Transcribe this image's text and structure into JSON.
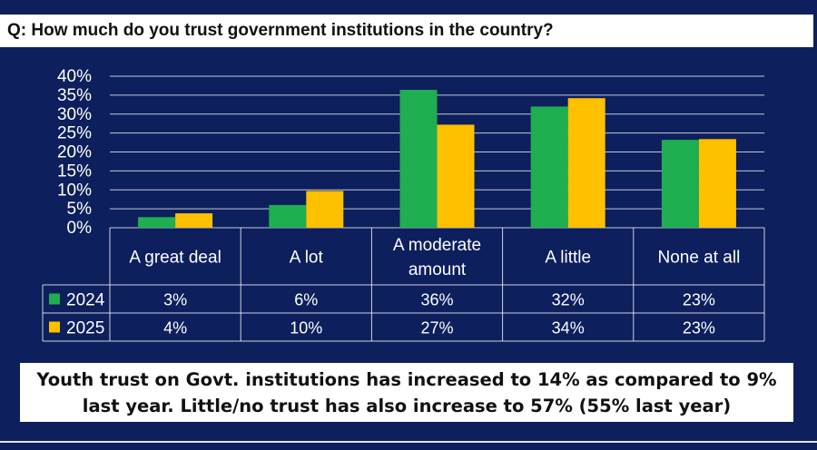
{
  "question": "Q: How much do you trust government institutions in the country?",
  "summary": "Youth trust on Govt. institutions has increased to 14% as compared to 9% last year. Little/no trust has also increase to 57% (55% last year)",
  "colors": {
    "background": "#0d1f5c",
    "series_2024": "#1fae50",
    "series_2025": "#ffc000",
    "grid": "#ffffff"
  },
  "chart_data": {
    "type": "bar",
    "categories": [
      "A great deal",
      "A lot",
      "A moderate amount",
      "A little",
      "None at all"
    ],
    "category_lines": [
      [
        "A great deal"
      ],
      [
        "A lot"
      ],
      [
        "A moderate",
        "amount"
      ],
      [
        "A little"
      ],
      [
        "None at all"
      ]
    ],
    "series": [
      {
        "name": "2024",
        "values": [
          2.8,
          6,
          36.4,
          32,
          23.2
        ],
        "labels": [
          "3%",
          "6%",
          "36%",
          "32%",
          "23%"
        ]
      },
      {
        "name": "2025",
        "values": [
          3.8,
          9.7,
          27.2,
          34.2,
          23.4
        ],
        "labels": [
          "4%",
          "10%",
          "27%",
          "34%",
          "23%"
        ]
      }
    ],
    "ylim": [
      0,
      40
    ],
    "yticks": [
      "0%",
      "5%",
      "10%",
      "15%",
      "20%",
      "25%",
      "30%",
      "35%",
      "40%"
    ],
    "grid": true,
    "legend": "data table"
  }
}
